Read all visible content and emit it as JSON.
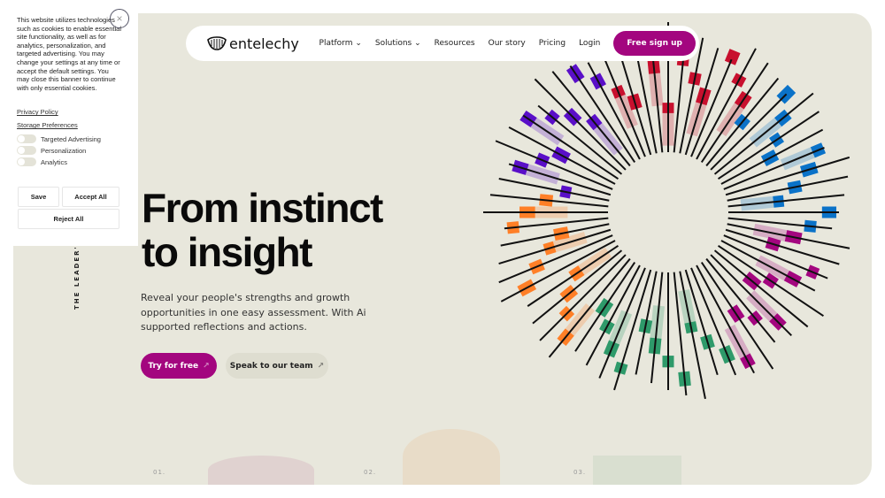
{
  "cookie": {
    "text": "This website utilizes technologies such as cookies to enable essential site functionality, as well as for analytics, personalization, and targeted advertising. You may change your settings at any time or accept the default settings. You may close this banner to continue with only essential cookies.",
    "privacy": "Privacy Policy",
    "storage": "Storage Preferences",
    "toggles": [
      "Targeted Advertising",
      "Personalization",
      "Analytics"
    ],
    "save": "Save",
    "accept": "Accept All",
    "reject": "Reject All",
    "close": "×"
  },
  "nav": {
    "brand": "entelechy",
    "items": [
      "Platform ⌄",
      "Solutions ⌄",
      "Resources",
      "Our story",
      "Pricing",
      "Login"
    ],
    "signup": "Free sign up"
  },
  "hero": {
    "title1": "From instinct",
    "title2": "to insight",
    "subtitle": "Reveal your people's strengths and growth opportunities in one easy assessment. With Ai supported reflections and actions.",
    "try": "Try for free",
    "speak": "Speak to our team",
    "arrow": "↗",
    "vertical": "THE LEADER'S G",
    "nums": [
      "01.",
      "02.",
      "03."
    ]
  },
  "colors": {
    "accent": "#a3067f",
    "bg": "#e8e7dc",
    "palette": [
      "#c8102e",
      "#0a72c8",
      "#a3067f",
      "#2e9a6a",
      "#ff7f27",
      "#5a0fc8"
    ]
  }
}
